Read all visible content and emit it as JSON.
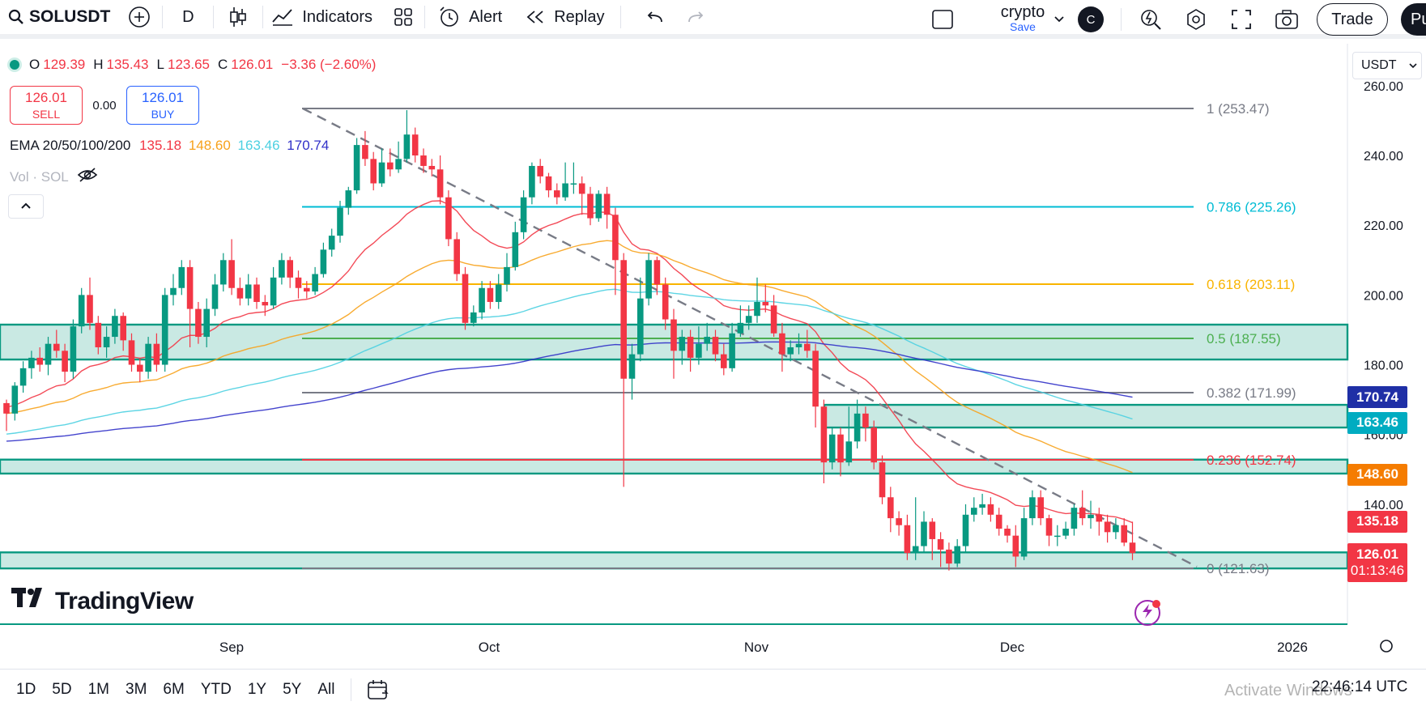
{
  "toolbar": {
    "symbol": "SOLUSDT",
    "interval": "D",
    "indicators_label": "Indicators",
    "alert_label": "Alert",
    "replay_label": "Replay",
    "layout_name": "crypto",
    "layout_save": "Save",
    "user_initial": "C",
    "trade_label": "Trade",
    "publish_label": "Pu"
  },
  "legend": {
    "o_label": "O",
    "o_value": "129.39",
    "h_label": "H",
    "h_value": "135.43",
    "l_label": "L",
    "l_value": "123.65",
    "c_label": "C",
    "c_value": "126.01",
    "change": "−3.36 (−2.60%)"
  },
  "trade_box": {
    "sell_price": "126.01",
    "sell_label": "SELL",
    "spread": "0.00",
    "buy_price": "126.01",
    "buy_label": "BUY"
  },
  "ema": {
    "label": "EMA 20/50/100/200",
    "values": [
      "135.18",
      "148.60",
      "163.46",
      "170.74"
    ],
    "colors": [
      "#f23645",
      "#f7a21b",
      "#4dd0e1",
      "#3030c8"
    ]
  },
  "volume": {
    "label": "Vol · SOL"
  },
  "currency": "USDT",
  "brand": "TradingView",
  "chart_data": {
    "type": "candlestick",
    "x_axis_labels": [
      "Sep",
      "Oct",
      "Nov",
      "Dec",
      "2026"
    ],
    "y_axis_labels": [
      "260.00",
      "240.00",
      "220.00",
      "200.00",
      "180.00",
      "160.00",
      "140.00"
    ],
    "ylim": [
      118,
      262
    ],
    "fib_levels": [
      {
        "label": "1 (253.47)",
        "price": 253.47,
        "color": "#787b86"
      },
      {
        "label": "0.786 (225.26)",
        "price": 225.26,
        "color": "#00bcd4"
      },
      {
        "label": "0.618 (203.11)",
        "price": 203.11,
        "color": "#f9b400"
      },
      {
        "label": "0.5 (187.55)",
        "price": 187.55,
        "color": "#4caf50"
      },
      {
        "label": "0.382 (171.99)",
        "price": 171.99,
        "color": "#787b86"
      },
      {
        "label": "0.236 (152.74)",
        "price": 152.74,
        "color": "#f23645"
      },
      {
        "label": "0 (121.63)",
        "price": 121.63,
        "color": "#787b86"
      }
    ],
    "zones": [
      {
        "top": 191.5,
        "bottom": 181.5
      },
      {
        "top": 168.5,
        "bottom": 162.0
      },
      {
        "top": 152.8,
        "bottom": 148.8
      },
      {
        "top": 126.2,
        "bottom": 121.6
      }
    ],
    "price_tags": [
      {
        "value": "170.74",
        "price": 170.74,
        "color": "#1f2fa6"
      },
      {
        "value": "163.46",
        "price": 163.46,
        "color": "#00acc1"
      },
      {
        "value": "148.60",
        "price": 148.6,
        "color": "#f57c00"
      },
      {
        "value": "135.18",
        "price": 135.18,
        "color": "#f23645"
      }
    ],
    "last_price": {
      "value": "126.01",
      "countdown": "01:13:46",
      "color": "#f23645"
    },
    "candles": [
      [
        169,
        166,
        170,
        161
      ],
      [
        166,
        174,
        175,
        164
      ],
      [
        174,
        179,
        181,
        172
      ],
      [
        179,
        182,
        184,
        176
      ],
      [
        182,
        180,
        185,
        178
      ],
      [
        180,
        186,
        188,
        177
      ],
      [
        186,
        184,
        190,
        182
      ],
      [
        184,
        178,
        186,
        175
      ],
      [
        178,
        191,
        193,
        176
      ],
      [
        191,
        200,
        202,
        189
      ],
      [
        200,
        192,
        205,
        190
      ],
      [
        192,
        185,
        194,
        183
      ],
      [
        185,
        188,
        191,
        182
      ],
      [
        188,
        194,
        196,
        186
      ],
      [
        194,
        187,
        195,
        184
      ],
      [
        187,
        180,
        189,
        178
      ],
      [
        180,
        178,
        182,
        175
      ],
      [
        178,
        186,
        188,
        176
      ],
      [
        186,
        180,
        189,
        178
      ],
      [
        180,
        200,
        202,
        178
      ],
      [
        200,
        202,
        206,
        197
      ],
      [
        202,
        208,
        210,
        200
      ],
      [
        208,
        196,
        210,
        185
      ],
      [
        196,
        188,
        198,
        186
      ],
      [
        188,
        196,
        199,
        185
      ],
      [
        196,
        203,
        206,
        194
      ],
      [
        203,
        210,
        212,
        201
      ],
      [
        210,
        202,
        216,
        200
      ],
      [
        202,
        199,
        205,
        197
      ],
      [
        199,
        203,
        206,
        197
      ],
      [
        203,
        198,
        205,
        196
      ],
      [
        198,
        197,
        200,
        194
      ],
      [
        197,
        205,
        208,
        196
      ],
      [
        205,
        210,
        212,
        203
      ],
      [
        210,
        205,
        211,
        202
      ],
      [
        205,
        202,
        207,
        199
      ],
      [
        202,
        201,
        204,
        199
      ],
      [
        201,
        206,
        208,
        200
      ],
      [
        206,
        213,
        215,
        205
      ],
      [
        213,
        217,
        219,
        211
      ],
      [
        217,
        225,
        227,
        215
      ],
      [
        225,
        230,
        231,
        223
      ],
      [
        230,
        243,
        245,
        229
      ],
      [
        243,
        239,
        247,
        237
      ],
      [
        239,
        232,
        241,
        230
      ],
      [
        232,
        238,
        242,
        231
      ],
      [
        238,
        236,
        242,
        234
      ],
      [
        236,
        239,
        244,
        235
      ],
      [
        239,
        246,
        253,
        238
      ],
      [
        246,
        240,
        248,
        238
      ],
      [
        240,
        237,
        242,
        235
      ],
      [
        237,
        236,
        239,
        234
      ],
      [
        236,
        228,
        240,
        226
      ],
      [
        228,
        216,
        230,
        214
      ],
      [
        216,
        206,
        218,
        204
      ],
      [
        206,
        192,
        208,
        190
      ],
      [
        192,
        195,
        197,
        191
      ],
      [
        195,
        202,
        204,
        193
      ],
      [
        202,
        198,
        204,
        196
      ],
      [
        198,
        203,
        206,
        196
      ],
      [
        203,
        208,
        212,
        201
      ],
      [
        208,
        218,
        221,
        207
      ],
      [
        218,
        228,
        230,
        216
      ],
      [
        228,
        237,
        238,
        226
      ],
      [
        237,
        234,
        239,
        232
      ],
      [
        234,
        230,
        235,
        228
      ],
      [
        230,
        228,
        232,
        226
      ],
      [
        228,
        232,
        238,
        227
      ],
      [
        232,
        232,
        238,
        229
      ],
      [
        232,
        229,
        234,
        223
      ],
      [
        229,
        222,
        231,
        220
      ],
      [
        222,
        229,
        230,
        221
      ],
      [
        229,
        223,
        231,
        219
      ],
      [
        223,
        210,
        225,
        200
      ],
      [
        210,
        176,
        212,
        145
      ],
      [
        176,
        183,
        186,
        170
      ],
      [
        183,
        199,
        205,
        181
      ],
      [
        199,
        210,
        212,
        197
      ],
      [
        210,
        203,
        211,
        200
      ],
      [
        203,
        193,
        205,
        190
      ],
      [
        193,
        184,
        196,
        176
      ],
      [
        184,
        188,
        190,
        180
      ],
      [
        188,
        182,
        190,
        178
      ],
      [
        182,
        186,
        191,
        180
      ],
      [
        186,
        188,
        192,
        184
      ],
      [
        188,
        183,
        190,
        181
      ],
      [
        183,
        179,
        186,
        177
      ],
      [
        179,
        189,
        192,
        178
      ],
      [
        189,
        192,
        197,
        188
      ],
      [
        192,
        194,
        197,
        190
      ],
      [
        194,
        198,
        205,
        192
      ],
      [
        198,
        197,
        203,
        195
      ],
      [
        197,
        189,
        200,
        188
      ],
      [
        189,
        183,
        192,
        178
      ],
      [
        183,
        185,
        187,
        181
      ],
      [
        185,
        186,
        189,
        183
      ],
      [
        186,
        184,
        190,
        182
      ],
      [
        184,
        168,
        186,
        162
      ],
      [
        168,
        152,
        170,
        146
      ],
      [
        152,
        160,
        162,
        150
      ],
      [
        160,
        152,
        162,
        148
      ],
      [
        152,
        158,
        168,
        151
      ],
      [
        158,
        166,
        170,
        156
      ],
      [
        166,
        162,
        168,
        158
      ],
      [
        162,
        152,
        164,
        150
      ],
      [
        152,
        142,
        154,
        140
      ],
      [
        142,
        136,
        145,
        132
      ],
      [
        136,
        134,
        138,
        131
      ],
      [
        134,
        126,
        137,
        124
      ],
      [
        126,
        128,
        142,
        124
      ],
      [
        128,
        135,
        138,
        126
      ],
      [
        135,
        130,
        136,
        124
      ],
      [
        130,
        127,
        132,
        122
      ],
      [
        127,
        123,
        129,
        121
      ],
      [
        123,
        128,
        130,
        122
      ],
      [
        128,
        137,
        140,
        126
      ],
      [
        137,
        139,
        142,
        135
      ],
      [
        139,
        140,
        143,
        137
      ],
      [
        140,
        137,
        142,
        135
      ],
      [
        137,
        133,
        139,
        131
      ],
      [
        133,
        131,
        134,
        129
      ],
      [
        131,
        125,
        134,
        122
      ],
      [
        125,
        136,
        139,
        124
      ],
      [
        136,
        142,
        144,
        134
      ],
      [
        142,
        136,
        144,
        134
      ],
      [
        136,
        131,
        137,
        128
      ],
      [
        131,
        131,
        134,
        128
      ],
      [
        131,
        133,
        135,
        130
      ],
      [
        133,
        139,
        140,
        131
      ],
      [
        139,
        136,
        144,
        134
      ],
      [
        136,
        137,
        141,
        133
      ],
      [
        137,
        135,
        139,
        131
      ],
      [
        135,
        132,
        137,
        129
      ],
      [
        132,
        134,
        136,
        130
      ],
      [
        134,
        129,
        136,
        128
      ],
      [
        129,
        126,
        135,
        124
      ]
    ]
  },
  "bottom": {
    "ranges": [
      "1D",
      "5D",
      "1M",
      "3M",
      "6M",
      "YTD",
      "1Y",
      "5Y",
      "All"
    ],
    "clock": "22:46:14 UTC",
    "watermark": "Activate Windows"
  }
}
